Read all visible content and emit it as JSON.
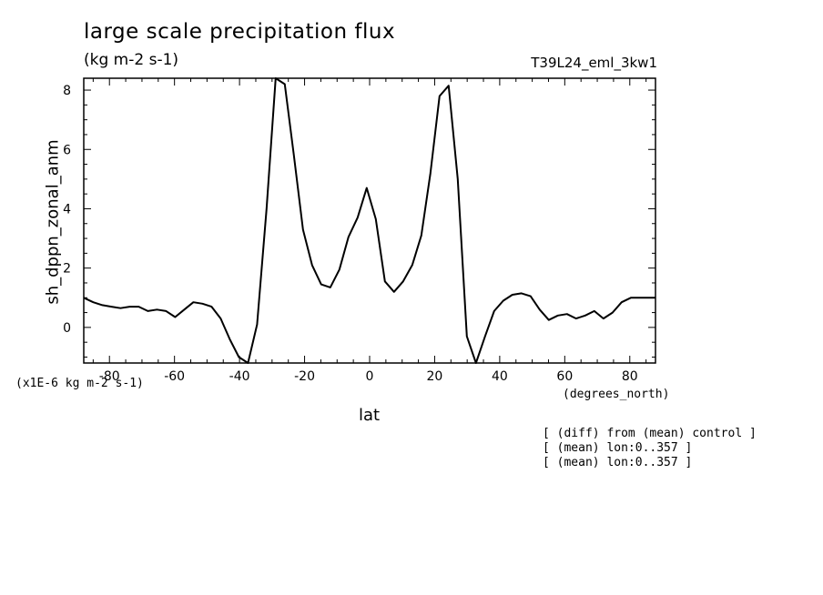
{
  "chart_data": {
    "type": "line",
    "title": "large scale precipitation flux",
    "units": "(kg m-2 s-1)",
    "run_id": "T39L24_eml_3kw1",
    "ylabel": "sh_dppn_zonal_anm",
    "xlabel": "lat",
    "xunits": "(degrees_north)",
    "scale_note": "(x1E-6 kg m-2 s-1)",
    "notes": [
      "[ (diff) from (mean) control ]",
      "[ (mean) lon:0..357 ]",
      "[ (mean) lon:0..357 ]"
    ],
    "xlim": [
      -87.9,
      87.9
    ],
    "ylim": [
      -1.2,
      8.4
    ],
    "xticks": [
      -80,
      -60,
      -40,
      -20,
      0,
      20,
      40,
      60,
      80
    ],
    "yticks": [
      0,
      2,
      4,
      6,
      8
    ],
    "xtick_labels": [
      "-80",
      "-60",
      "-40",
      "-20",
      "0",
      "20",
      "40",
      "60",
      "80"
    ],
    "ytick_labels": [
      "0",
      "2",
      "4",
      "6",
      "8"
    ],
    "grid": false,
    "series": [
      {
        "x": [
          -87.9,
          -85.0,
          -82.2,
          -79.4,
          -76.6,
          -73.8,
          -71.0,
          -68.2,
          -65.4,
          -62.6,
          -59.8,
          -57.0,
          -54.2,
          -51.4,
          -48.6,
          -45.8,
          -43.0,
          -40.2,
          -37.4,
          -34.6,
          -31.7,
          -28.9,
          -26.1,
          -23.3,
          -20.5,
          -17.7,
          -14.9,
          -12.1,
          -9.3,
          -6.5,
          -3.7,
          -0.9,
          1.9,
          4.7,
          7.5,
          10.3,
          13.1,
          15.9,
          18.7,
          21.5,
          24.3,
          27.1,
          29.9,
          32.7,
          35.5,
          38.3,
          41.1,
          43.9,
          46.7,
          49.5,
          52.3,
          55.1,
          57.9,
          60.7,
          63.5,
          66.3,
          69.1,
          71.9,
          74.7,
          77.5,
          80.3,
          83.1,
          85.9,
          87.9
        ],
        "y": [
          1.0,
          0.85,
          0.75,
          0.7,
          0.65,
          0.7,
          0.7,
          0.55,
          0.6,
          0.55,
          0.35,
          0.6,
          0.85,
          0.8,
          0.7,
          0.3,
          -0.4,
          -1.0,
          -1.2,
          0.1,
          4.0,
          8.4,
          8.2,
          5.8,
          3.3,
          2.1,
          1.45,
          1.35,
          1.95,
          3.05,
          3.7,
          4.7,
          3.65,
          1.55,
          1.2,
          1.55,
          2.1,
          3.1,
          5.2,
          7.8,
          8.15,
          5.0,
          -0.3,
          -1.2,
          -0.3,
          0.55,
          0.9,
          1.1,
          1.15,
          1.05,
          0.6,
          0.25,
          0.4,
          0.45,
          0.3,
          0.4,
          0.55,
          0.3,
          0.5,
          0.85,
          1.0,
          1.0,
          1.0,
          1.0
        ]
      }
    ]
  }
}
